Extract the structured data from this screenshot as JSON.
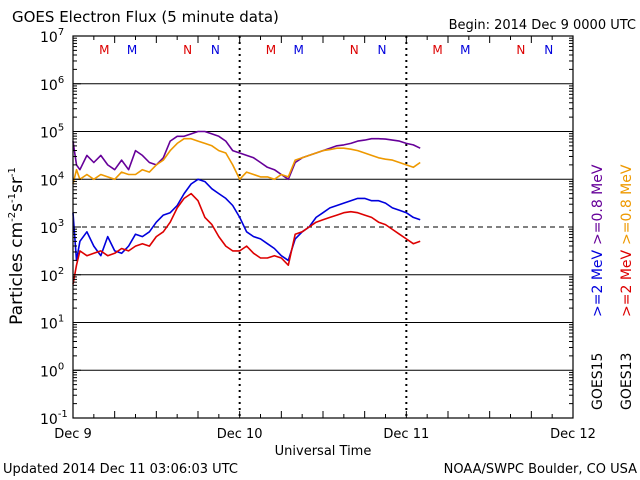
{
  "chart_data": {
    "type": "line",
    "title": "GOES Electron Flux (5 minute data)",
    "begin": "Begin: 2014 Dec 9 0000 UTC",
    "updated": "Updated 2014 Dec 11 03:06:03 UTC",
    "credit": "NOAA/SWPC Boulder, CO USA",
    "xlabel": "Universal Time",
    "ylabel_main": "Particles cm",
    "ylabel_sup1": "-2",
    "ylabel_mid1": "s",
    "ylabel_sup2": "-1",
    "ylabel_mid2": "sr",
    "ylabel_sup3": "-1",
    "xlim_hours": [
      0,
      72
    ],
    "ylim_log10": [
      -1,
      7
    ],
    "x_ticks": [
      {
        "hour": 0,
        "label": "Dec 9"
      },
      {
        "hour": 24,
        "label": "Dec 10"
      },
      {
        "hour": 48,
        "label": "Dec 11"
      },
      {
        "hour": 72,
        "label": "Dec 12"
      }
    ],
    "y_ticks": [
      {
        "exp": 7,
        "label": "7"
      },
      {
        "exp": 6,
        "label": "6"
      },
      {
        "exp": 5,
        "label": "5"
      },
      {
        "exp": 4,
        "label": "4"
      },
      {
        "exp": 3,
        "label": "3"
      },
      {
        "exp": 2,
        "label": "2"
      },
      {
        "exp": 1,
        "label": "1"
      },
      {
        "exp": 0,
        "label": "0"
      },
      {
        "exp": -1,
        "label": "-1"
      }
    ],
    "threshold_exp": 3,
    "markers": [
      {
        "hour": 4.5,
        "label": "M",
        "color": "#dd0000"
      },
      {
        "hour": 8.5,
        "label": "M",
        "color": "#0000dd"
      },
      {
        "hour": 16.5,
        "label": "N",
        "color": "#dd0000"
      },
      {
        "hour": 20.5,
        "label": "N",
        "color": "#0000dd"
      },
      {
        "hour": 28.5,
        "label": "M",
        "color": "#dd0000"
      },
      {
        "hour": 32.5,
        "label": "M",
        "color": "#0000dd"
      },
      {
        "hour": 40.5,
        "label": "N",
        "color": "#dd0000"
      },
      {
        "hour": 44.5,
        "label": "N",
        "color": "#0000dd"
      },
      {
        "hour": 52.5,
        "label": "M",
        "color": "#dd0000"
      },
      {
        "hour": 56.5,
        "label": "M",
        "color": "#0000dd"
      },
      {
        "hour": 64.5,
        "label": "N",
        "color": "#dd0000"
      },
      {
        "hour": 68.5,
        "label": "N",
        "color": "#0000dd"
      }
    ],
    "legend": {
      "groups": [
        {
          "sat": "GOES15",
          "items": [
            {
              "label": ">=0.8 MeV",
              "color": "#660099"
            },
            {
              "label": ">=2 MeV",
              "color": "#0000dd"
            }
          ]
        },
        {
          "sat": "GOES13",
          "items": [
            {
              "label": ">=0.8 MeV",
              "color": "#ee9900"
            },
            {
              "label": ">=2 MeV",
              "color": "#dd0000"
            }
          ]
        }
      ]
    },
    "series": [
      {
        "name": "GOES15 >=0.8 MeV",
        "color": "#660099",
        "hours": [
          0,
          0.5,
          1,
          2,
          3,
          4,
          5,
          6,
          7,
          8,
          9,
          10,
          11,
          12,
          13,
          14,
          15,
          16,
          17,
          18,
          19,
          20,
          21,
          22,
          23,
          24,
          25,
          26,
          27,
          28,
          29,
          30,
          31,
          32,
          33,
          34,
          35,
          36,
          37,
          38,
          39,
          40,
          41,
          42,
          43,
          44,
          45,
          46,
          47,
          48,
          49,
          50
        ],
        "log10": [
          4.8,
          4.3,
          4.2,
          4.5,
          4.35,
          4.5,
          4.3,
          4.2,
          4.4,
          4.2,
          4.6,
          4.5,
          4.35,
          4.3,
          4.45,
          4.8,
          4.9,
          4.9,
          4.95,
          5.0,
          5.0,
          4.95,
          4.9,
          4.8,
          4.6,
          4.55,
          4.5,
          4.45,
          4.35,
          4.25,
          4.2,
          4.1,
          4.0,
          4.35,
          4.45,
          4.5,
          4.55,
          4.6,
          4.65,
          4.7,
          4.72,
          4.75,
          4.8,
          4.82,
          4.85,
          4.85,
          4.84,
          4.82,
          4.8,
          4.75,
          4.72,
          4.65
        ]
      },
      {
        "name": "GOES13 >=0.8 MeV",
        "color": "#ee9900",
        "hours": [
          0,
          0.5,
          1,
          2,
          3,
          4,
          5,
          6,
          7,
          8,
          9,
          10,
          11,
          12,
          13,
          14,
          15,
          16,
          17,
          18,
          19,
          20,
          21,
          22,
          23,
          24,
          25,
          26,
          27,
          28,
          29,
          30,
          31,
          32,
          33,
          34,
          35,
          36,
          37,
          38,
          39,
          40,
          41,
          42,
          43,
          44,
          45,
          46,
          47,
          48,
          49,
          50
        ],
        "log10": [
          3.9,
          4.2,
          4.0,
          4.1,
          4.0,
          4.1,
          4.05,
          4.0,
          4.15,
          4.1,
          4.1,
          4.2,
          4.15,
          4.3,
          4.4,
          4.6,
          4.75,
          4.85,
          4.85,
          4.8,
          4.75,
          4.7,
          4.6,
          4.55,
          4.3,
          4.0,
          4.15,
          4.1,
          4.05,
          4.05,
          4.0,
          4.1,
          4.05,
          4.4,
          4.45,
          4.5,
          4.55,
          4.6,
          4.62,
          4.65,
          4.65,
          4.63,
          4.6,
          4.55,
          4.5,
          4.45,
          4.42,
          4.4,
          4.35,
          4.3,
          4.25,
          4.35
        ]
      },
      {
        "name": "GOES15 >=2 MeV",
        "color": "#0000dd",
        "hours": [
          0,
          0.5,
          1,
          2,
          3,
          4,
          5,
          6,
          7,
          8,
          9,
          10,
          11,
          12,
          13,
          14,
          15,
          16,
          17,
          18,
          19,
          20,
          21,
          22,
          23,
          24,
          25,
          26,
          27,
          28,
          29,
          30,
          31,
          32,
          33,
          34,
          35,
          36,
          37,
          38,
          39,
          40,
          41,
          42,
          43,
          44,
          45,
          46,
          47,
          48,
          49,
          50
        ],
        "log10": [
          3.3,
          2.3,
          2.7,
          2.9,
          2.6,
          2.4,
          2.8,
          2.5,
          2.45,
          2.6,
          2.85,
          2.8,
          2.9,
          3.1,
          3.25,
          3.3,
          3.45,
          3.7,
          3.9,
          4.0,
          3.95,
          3.8,
          3.7,
          3.6,
          3.45,
          3.2,
          2.9,
          2.8,
          2.75,
          2.65,
          2.55,
          2.4,
          2.3,
          2.75,
          2.9,
          3.0,
          3.2,
          3.3,
          3.4,
          3.45,
          3.5,
          3.55,
          3.6,
          3.6,
          3.55,
          3.55,
          3.5,
          3.4,
          3.35,
          3.3,
          3.2,
          3.15
        ]
      },
      {
        "name": "GOES13 >=2 MeV",
        "color": "#dd0000",
        "hours": [
          0,
          0.5,
          1,
          2,
          3,
          4,
          5,
          6,
          7,
          8,
          9,
          10,
          11,
          12,
          13,
          14,
          15,
          16,
          17,
          18,
          19,
          20,
          21,
          22,
          23,
          24,
          25,
          26,
          27,
          28,
          29,
          30,
          31,
          32,
          33,
          34,
          35,
          36,
          37,
          38,
          39,
          40,
          41,
          42,
          43,
          44,
          45,
          46,
          47,
          48,
          49,
          50
        ],
        "log10": [
          1.8,
          2.2,
          2.5,
          2.4,
          2.45,
          2.5,
          2.4,
          2.45,
          2.55,
          2.5,
          2.6,
          2.65,
          2.6,
          2.8,
          2.9,
          3.1,
          3.4,
          3.6,
          3.7,
          3.55,
          3.2,
          3.05,
          2.8,
          2.6,
          2.5,
          2.5,
          2.6,
          2.45,
          2.35,
          2.35,
          2.4,
          2.35,
          2.2,
          2.85,
          2.9,
          3.0,
          3.1,
          3.15,
          3.2,
          3.25,
          3.3,
          3.32,
          3.3,
          3.25,
          3.2,
          3.1,
          3.05,
          2.95,
          2.85,
          2.75,
          2.65,
          2.7
        ]
      }
    ]
  }
}
